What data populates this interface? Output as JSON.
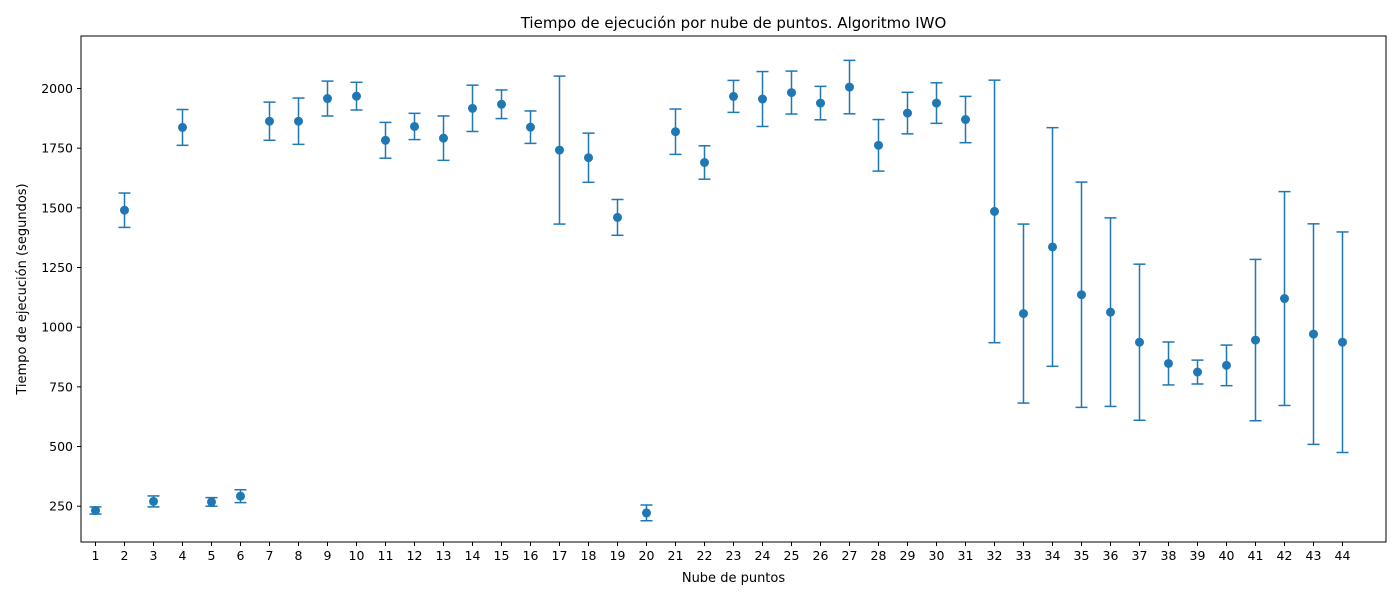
{
  "chart_data": {
    "type": "scatter",
    "title": "Tiempo de ejecución por nube de puntos. Algoritmo IWO",
    "xlabel": "Nube de puntos",
    "ylabel": "Tiempo de ejecución (segundos)",
    "ylim": [
      100,
      2220
    ],
    "xlim": [
      -0.5,
      44.5
    ],
    "yticks": [
      250,
      500,
      750,
      1000,
      1250,
      1500,
      1750,
      2000
    ],
    "grid": false,
    "color": "#1f77b4",
    "categories": [
      "1",
      "2",
      "3",
      "4",
      "5",
      "6",
      "7",
      "8",
      "9",
      "10",
      "11",
      "12",
      "13",
      "14",
      "15",
      "16",
      "17",
      "18",
      "19",
      "20",
      "21",
      "22",
      "23",
      "24",
      "25",
      "26",
      "27",
      "28",
      "29",
      "30",
      "31",
      "32",
      "33",
      "34",
      "35",
      "36",
      "37",
      "38",
      "39",
      "40",
      "41",
      "42",
      "43",
      "44"
    ],
    "series": [
      {
        "mean": [
          232,
          1490,
          270,
          1837,
          268,
          292,
          1863,
          1863,
          1958,
          1968,
          1783,
          1841,
          1792,
          1917,
          1934,
          1838,
          1742,
          1710,
          1460,
          222,
          1819,
          1690,
          1967,
          1956,
          1983,
          1939,
          2006,
          1762,
          1897,
          1939,
          1870,
          1485,
          1057,
          1336,
          1136,
          1063,
          937,
          848,
          812,
          840,
          946,
          1120,
          971,
          937
        ],
        "error": [
          15,
          72,
          23,
          75,
          18,
          27,
          80,
          97,
          73,
          58,
          75,
          55,
          93,
          97,
          60,
          68,
          310,
          103,
          75,
          33,
          95,
          70,
          67,
          115,
          90,
          70,
          112,
          108,
          87,
          85,
          97,
          550,
          375,
          500,
          472,
          395,
          327,
          90,
          50,
          85,
          338,
          448,
          462,
          462
        ]
      }
    ]
  }
}
